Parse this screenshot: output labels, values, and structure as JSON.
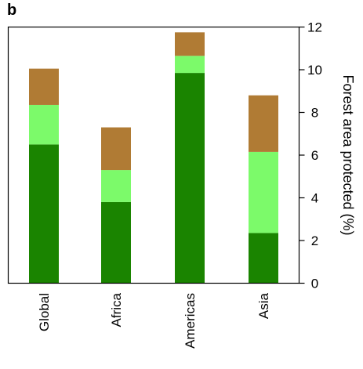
{
  "panel_label": "b",
  "colors": {
    "series_1": "#1a8400",
    "series_2": "#7cfa6a",
    "series_3": "#b07b34"
  },
  "chart_data": {
    "type": "bar",
    "stacked": true,
    "categories": [
      "Global",
      "Africa",
      "Americas",
      "Asia"
    ],
    "series": [
      {
        "values": [
          6.5,
          3.8,
          9.85,
          2.35
        ]
      },
      {
        "values": [
          1.85,
          1.5,
          0.8,
          3.8
        ]
      },
      {
        "values": [
          1.7,
          2.0,
          1.1,
          2.65
        ]
      }
    ],
    "ylabel": "Forest area protected (%)",
    "ylim": [
      0,
      12
    ],
    "yticks": [
      0,
      2,
      4,
      6,
      8,
      10,
      12
    ],
    "yaxis_position": "right",
    "grid": false,
    "legend": "none"
  }
}
